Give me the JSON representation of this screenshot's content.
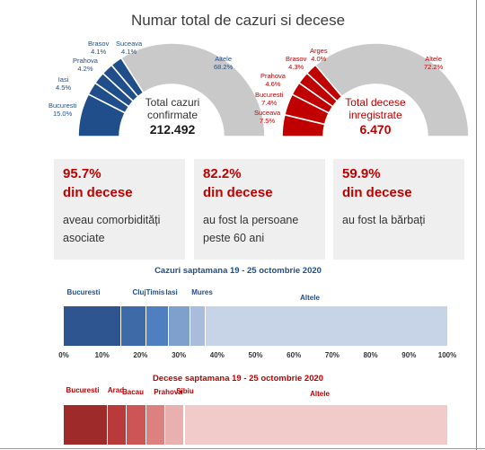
{
  "title": "Numar total de cazuri si decese",
  "colors": {
    "blue_dark": "#1f4e8a",
    "red_dark": "#c00000",
    "gauge_rest": "#c9c9c9",
    "stat_accent": "#c00000"
  },
  "cases_gauge": {
    "center_label": "Total cazuri confirmate",
    "center_value": "212.492",
    "slices": [
      {
        "name": "Bucuresti",
        "value": 15.0,
        "label": "Bucuresti",
        "pct": "15.0%"
      },
      {
        "name": "Iasi",
        "value": 4.5,
        "label": "Iasi",
        "pct": "4.5%"
      },
      {
        "name": "Prahova",
        "value": 4.2,
        "label": "Prahova",
        "pct": "4.2%"
      },
      {
        "name": "Brasov",
        "value": 4.1,
        "label": "Brasov",
        "pct": "4.1%"
      },
      {
        "name": "Suceava",
        "value": 4.1,
        "label": "Suceava",
        "pct": "4.1%"
      },
      {
        "name": "Altele",
        "value": 68.2,
        "label": "Altele",
        "pct": "68.2%"
      }
    ]
  },
  "deaths_gauge": {
    "center_label": "Total decese inregistrate",
    "center_value": "6.470",
    "slices": [
      {
        "name": "Suceava",
        "value": 7.5,
        "label": "Suceava",
        "pct": "7.5%"
      },
      {
        "name": "Bucuresti",
        "value": 7.4,
        "label": "Bucuresti",
        "pct": "7.4%"
      },
      {
        "name": "Prahova",
        "value": 4.6,
        "label": "Prahova",
        "pct": "4.6%"
      },
      {
        "name": "Brasov",
        "value": 4.3,
        "label": "Brasov",
        "pct": "4.3%"
      },
      {
        "name": "Arges",
        "value": 4.0,
        "label": "Arges",
        "pct": "4.0%"
      },
      {
        "name": "Altele",
        "value": 72.2,
        "label": "Altele",
        "pct": "72.2%"
      }
    ]
  },
  "stats": [
    {
      "pct": "95.7%",
      "sub": "din decese",
      "desc": "aveau comorbidități asociate"
    },
    {
      "pct": "82.2%",
      "sub": "din decese",
      "desc": "au fost la persoane peste 60 ani"
    },
    {
      "pct": "59.9%",
      "sub": "din decese",
      "desc": "au fost la bărbați"
    }
  ],
  "chart_data": [
    {
      "type": "bar",
      "title": "Cazuri saptamana 19 - 25 octombrie 2020",
      "orientation": "horizontal-stacked-100",
      "categories": [
        "Bucuresti",
        "Cluj",
        "Timis",
        "Iasi",
        "Mures",
        "Altele"
      ],
      "values": [
        15.0,
        6.5,
        6.0,
        5.5,
        4.0,
        63.0
      ],
      "colors": [
        "#2e5590",
        "#3e6aa8",
        "#4f7fc0",
        "#7f9fcc",
        "#a9bcdc",
        "#c7d3e6"
      ],
      "xlim": [
        0,
        100
      ],
      "ticks": [
        "0%",
        "10%",
        "20%",
        "30%",
        "40%",
        "50%",
        "60%",
        "70%",
        "80%",
        "90%",
        "100%"
      ]
    },
    {
      "type": "bar",
      "title": "Decese saptamana 19 - 25 octombrie 2020",
      "orientation": "horizontal-stacked-100",
      "categories": [
        "Bucuresti",
        "Arad",
        "Bacau",
        "Prahova",
        "Sibiu",
        "Altele"
      ],
      "values": [
        11.5,
        5.0,
        5.0,
        5.0,
        5.0,
        68.5
      ],
      "colors": [
        "#9e2a2a",
        "#b83a3a",
        "#cc5555",
        "#dd8080",
        "#e9b0b0",
        "#f1caca"
      ],
      "xlim": [
        0,
        100
      ]
    }
  ]
}
